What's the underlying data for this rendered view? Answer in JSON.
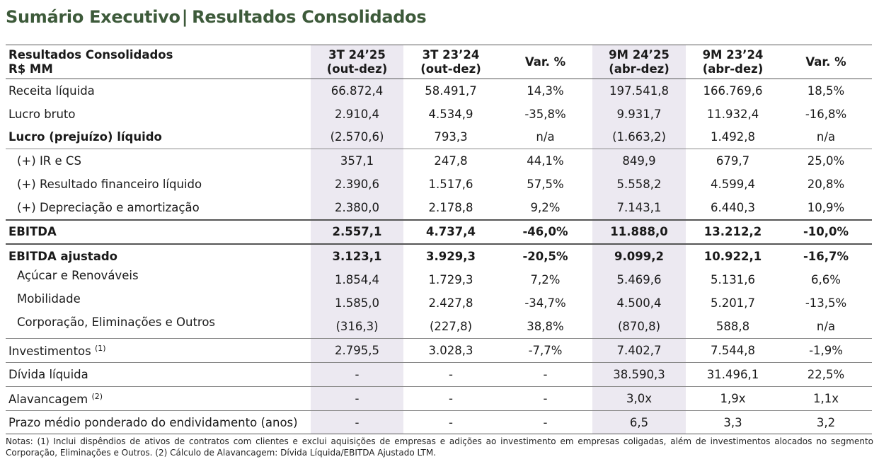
{
  "title": {
    "part1": "Sumário Executivo",
    "sep": "|",
    "part2": "Resultados Consolidados"
  },
  "header": {
    "label_line1": "Resultados Consolidados",
    "label_line2": "R$ MM",
    "columns": [
      {
        "line1": "3T 24’25",
        "line2": "(out-dez)"
      },
      {
        "line1": "3T 23’24",
        "line2": "(out-dez)"
      },
      {
        "line1": "Var. %",
        "line2": ""
      },
      {
        "line1": "9M 24’25",
        "line2": "(abr-dez)"
      },
      {
        "line1": "9M 23’24",
        "line2": "(abr-dez)"
      },
      {
        "line1": "Var. %",
        "line2": ""
      }
    ]
  },
  "rows": [
    {
      "label": "Receita líquida",
      "sup": "",
      "values": [
        "66.872,4",
        "58.491,7",
        "14,3%",
        "197.541,8",
        "166.769,6",
        "18,5%"
      ]
    },
    {
      "label": "Lucro bruto",
      "sup": "",
      "values": [
        "2.910,4",
        "4.534,9",
        "-35,8%",
        "9.931,7",
        "11.932,4",
        "-16,8%"
      ]
    },
    {
      "label": "Lucro (prejuízo) líquido",
      "sup": "",
      "values": [
        "(2.570,6)",
        "793,3",
        "n/a",
        "(1.663,2)",
        "1.492,8",
        "n/a"
      ]
    },
    {
      "label": "(+) IR e CS",
      "sup": "",
      "values": [
        "357,1",
        "247,8",
        "44,1%",
        "849,9",
        "679,7",
        "25,0%"
      ]
    },
    {
      "label": "(+) Resultado financeiro líquido",
      "sup": "",
      "values": [
        "2.390,6",
        "1.517,6",
        "57,5%",
        "5.558,2",
        "4.599,4",
        "20,8%"
      ]
    },
    {
      "label": "(+) Depreciação e amortização",
      "sup": "",
      "values": [
        "2.380,0",
        "2.178,8",
        "9,2%",
        "7.143,1",
        "6.440,3",
        "10,9%"
      ]
    },
    {
      "label": "EBITDA",
      "sup": "",
      "values": [
        "2.557,1",
        "4.737,4",
        "-46,0%",
        "11.888,0",
        "13.212,2",
        "-10,0%"
      ]
    },
    {
      "label": "EBITDA ajustado",
      "sup": "",
      "values": [
        "3.123,1",
        "3.929,3",
        "-20,5%",
        "9.099,2",
        "10.922,1",
        "-16,7%"
      ]
    },
    {
      "label": "Açúcar e Renováveis",
      "sup": "",
      "values": [
        "1.854,4",
        "1.729,3",
        "7,2%",
        "5.469,6",
        "5.131,6",
        "6,6%"
      ]
    },
    {
      "label": "Mobilidade",
      "sup": "",
      "values": [
        "1.585,0",
        "2.427,8",
        "-34,7%",
        "4.500,4",
        "5.201,7",
        "-13,5%"
      ]
    },
    {
      "label": "Corporação, Eliminações e Outros",
      "sup": "",
      "values": [
        "(316,3)",
        "(227,8)",
        "38,8%",
        "(870,8)",
        "588,8",
        "n/a"
      ]
    },
    {
      "label": "Investimentos",
      "sup": "(1)",
      "values": [
        "2.795,5",
        "3.028,3",
        "-7,7%",
        "7.402,7",
        "7.544,8",
        "-1,9%"
      ]
    },
    {
      "label": "Dívida líquida",
      "sup": "",
      "values": [
        "-",
        "-",
        "-",
        "38.590,3",
        "31.496,1",
        "22,5%"
      ]
    },
    {
      "label": "Alavancagem",
      "sup": "(2)",
      "values": [
        "-",
        "-",
        "-",
        "3,0x",
        "1,9x",
        "1,1x"
      ]
    },
    {
      "label": "Prazo médio ponderado do endividamento (anos)",
      "sup": "",
      "values": [
        "-",
        "-",
        "-",
        "6,5",
        "3,3",
        "3,2"
      ]
    }
  ],
  "notes": "Notas: (1) Inclui dispêndios de ativos de contratos com clientes e exclui aquisições de empresas e adições ao investimento em empresas coligadas, além de investimentos alocados no segmento Corporação, Eliminações e Outros. (2) Cálculo de Alavancagem: Dívida Líquida/EBITDA Ajustado LTM.",
  "colors": {
    "title": "#3d5a3a",
    "shade": "#ece9f1"
  }
}
